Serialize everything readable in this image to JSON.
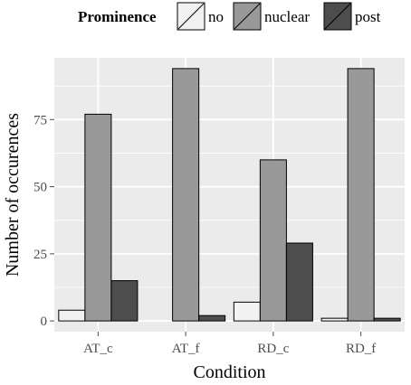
{
  "chart_data": {
    "type": "bar",
    "title": "",
    "xlabel": "Condition",
    "ylabel": "Number of occurences",
    "categories": [
      "AT_c",
      "AT_f",
      "RD_c",
      "RD_f"
    ],
    "series": [
      {
        "name": "no",
        "color": "#f2f2f2",
        "values": [
          4,
          0,
          7,
          1
        ]
      },
      {
        "name": "nuclear",
        "color": "#999999",
        "values": [
          77,
          94,
          60,
          94
        ]
      },
      {
        "name": "post",
        "color": "#4d4d4d",
        "values": [
          15,
          2,
          29,
          1
        ]
      }
    ],
    "ylim": [
      -4,
      98
    ],
    "yticks": [
      0,
      25,
      50,
      75
    ],
    "ytick_labels": [
      "0",
      "25",
      "50",
      "75"
    ],
    "grid": true,
    "legend": {
      "title": "Prominence",
      "placement": "top",
      "entries": [
        "no",
        "nuclear",
        "post"
      ]
    },
    "panel_background": "#ebebeb",
    "grid_color": "#ffffff"
  }
}
